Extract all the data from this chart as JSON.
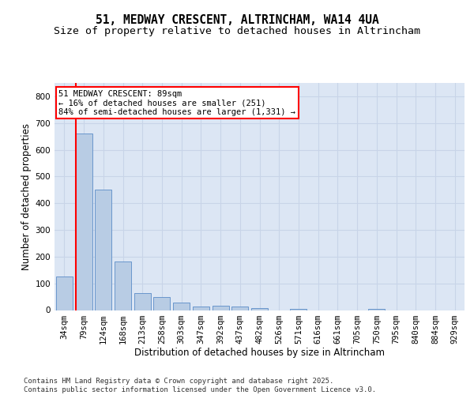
{
  "title_line1": "51, MEDWAY CRESCENT, ALTRINCHAM, WA14 4UA",
  "title_line2": "Size of property relative to detached houses in Altrincham",
  "xlabel": "Distribution of detached houses by size in Altrincham",
  "ylabel": "Number of detached properties",
  "categories": [
    "34sqm",
    "79sqm",
    "124sqm",
    "168sqm",
    "213sqm",
    "258sqm",
    "303sqm",
    "347sqm",
    "392sqm",
    "437sqm",
    "482sqm",
    "526sqm",
    "571sqm",
    "616sqm",
    "661sqm",
    "705sqm",
    "750sqm",
    "795sqm",
    "840sqm",
    "884sqm",
    "929sqm"
  ],
  "values": [
    125,
    660,
    450,
    183,
    65,
    50,
    28,
    12,
    17,
    12,
    7,
    0,
    5,
    0,
    0,
    0,
    5,
    0,
    0,
    0,
    0
  ],
  "bar_color": "#b8cce4",
  "bar_edge_color": "#5b8cc8",
  "vline_color": "#ff0000",
  "annotation_text": "51 MEDWAY CRESCENT: 89sqm\n← 16% of detached houses are smaller (251)\n84% of semi-detached houses are larger (1,331) →",
  "ylim": [
    0,
    850
  ],
  "yticks": [
    0,
    100,
    200,
    300,
    400,
    500,
    600,
    700,
    800
  ],
  "grid_color": "#c8d4e8",
  "background_color": "#dce6f4",
  "footer_text": "Contains HM Land Registry data © Crown copyright and database right 2025.\nContains public sector information licensed under the Open Government Licence v3.0.",
  "title_fontsize": 10.5,
  "subtitle_fontsize": 9.5,
  "tick_fontsize": 7.5,
  "ylabel_fontsize": 8.5,
  "xlabel_fontsize": 8.5,
  "footer_fontsize": 6.5,
  "ann_fontsize": 7.5
}
